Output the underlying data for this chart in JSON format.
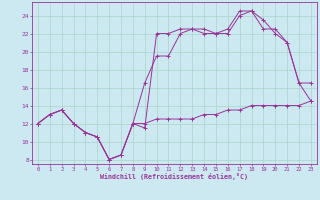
{
  "xlabel": "Windchill (Refroidissement éolien,°C)",
  "bg_color": "#cce8f0",
  "grid_color": "#aad4cc",
  "line_color": "#993399",
  "xlim": [
    -0.5,
    23.5
  ],
  "ylim": [
    7.5,
    25.5
  ],
  "xticks": [
    0,
    1,
    2,
    3,
    4,
    5,
    6,
    7,
    8,
    9,
    10,
    11,
    12,
    13,
    14,
    15,
    16,
    17,
    18,
    19,
    20,
    21,
    22,
    23
  ],
  "yticks": [
    8,
    10,
    12,
    14,
    16,
    18,
    20,
    22,
    24
  ],
  "line1_x": [
    0,
    1,
    2,
    3,
    4,
    5,
    6,
    7,
    8,
    9,
    10,
    11,
    12,
    13,
    14,
    15,
    16,
    17,
    18,
    19,
    20,
    21,
    22,
    23
  ],
  "line1_y": [
    12,
    13,
    13.5,
    12,
    11,
    10.5,
    8.0,
    8.5,
    12,
    11.5,
    22,
    22,
    22.5,
    22.5,
    22,
    22,
    22.5,
    24.5,
    24.5,
    22.5,
    22.5,
    21,
    16.5,
    16.5
  ],
  "line2_x": [
    0,
    1,
    2,
    3,
    4,
    5,
    6,
    7,
    8,
    9,
    10,
    11,
    12,
    13,
    14,
    15,
    16,
    17,
    18,
    19,
    20,
    21,
    22,
    23
  ],
  "line2_y": [
    12,
    13,
    13.5,
    12,
    11,
    10.5,
    8.0,
    8.5,
    12,
    16.5,
    19.5,
    19.5,
    22,
    22.5,
    22.5,
    22,
    22,
    24.0,
    24.5,
    23.5,
    22,
    21,
    16.5,
    14.5
  ],
  "line3_x": [
    0,
    1,
    2,
    3,
    4,
    5,
    6,
    7,
    8,
    9,
    10,
    11,
    12,
    13,
    14,
    15,
    16,
    17,
    18,
    19,
    20,
    21,
    22,
    23
  ],
  "line3_y": [
    12,
    13,
    13.5,
    12,
    11,
    10.5,
    8.0,
    8.5,
    12,
    12,
    12.5,
    12.5,
    12.5,
    12.5,
    13,
    13,
    13.5,
    13.5,
    14,
    14,
    14,
    14,
    14,
    14.5
  ]
}
